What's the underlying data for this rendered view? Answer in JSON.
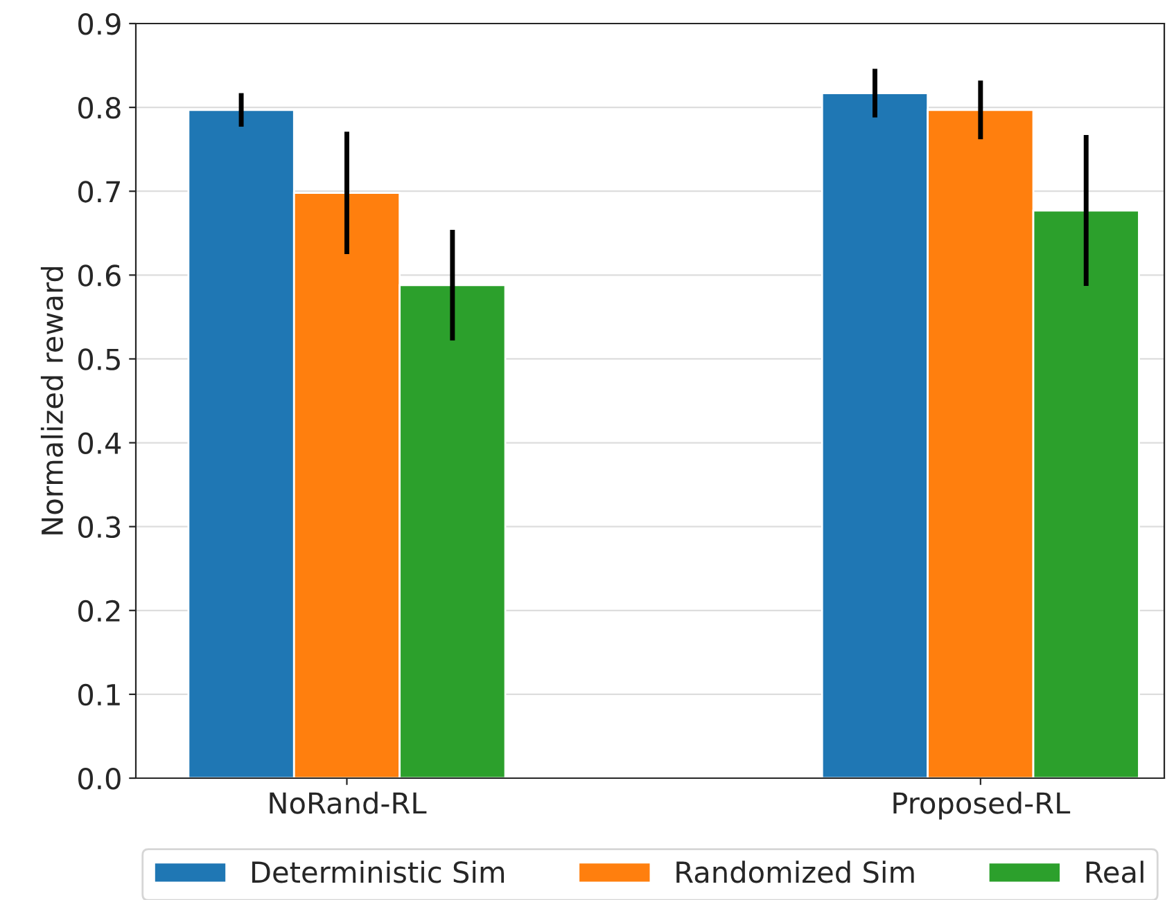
{
  "chart_data": {
    "type": "bar",
    "ylabel": "Normalized reward",
    "categories": [
      "NoRand-RL",
      "Proposed-RL"
    ],
    "series": [
      {
        "name": "Deterministic Sim",
        "color": "#1f77b4",
        "values": [
          0.797,
          0.817
        ],
        "errors": [
          0.02,
          0.029
        ]
      },
      {
        "name": "Randomized Sim",
        "color": "#ff7f0e",
        "values": [
          0.698,
          0.797
        ],
        "errors": [
          0.073,
          0.035
        ]
      },
      {
        "name": "Real",
        "color": "#2ca02c",
        "values": [
          0.588,
          0.677
        ],
        "errors": [
          0.066,
          0.09
        ]
      }
    ],
    "ylim": [
      0,
      0.9
    ],
    "yticks": [
      {
        "value": 0,
        "label": "0.0"
      },
      0.1,
      0.2,
      0.3,
      0.4,
      0.5,
      0.6,
      0.7,
      0.8,
      0.9
    ],
    "grid": "y",
    "legend": "bottom"
  }
}
